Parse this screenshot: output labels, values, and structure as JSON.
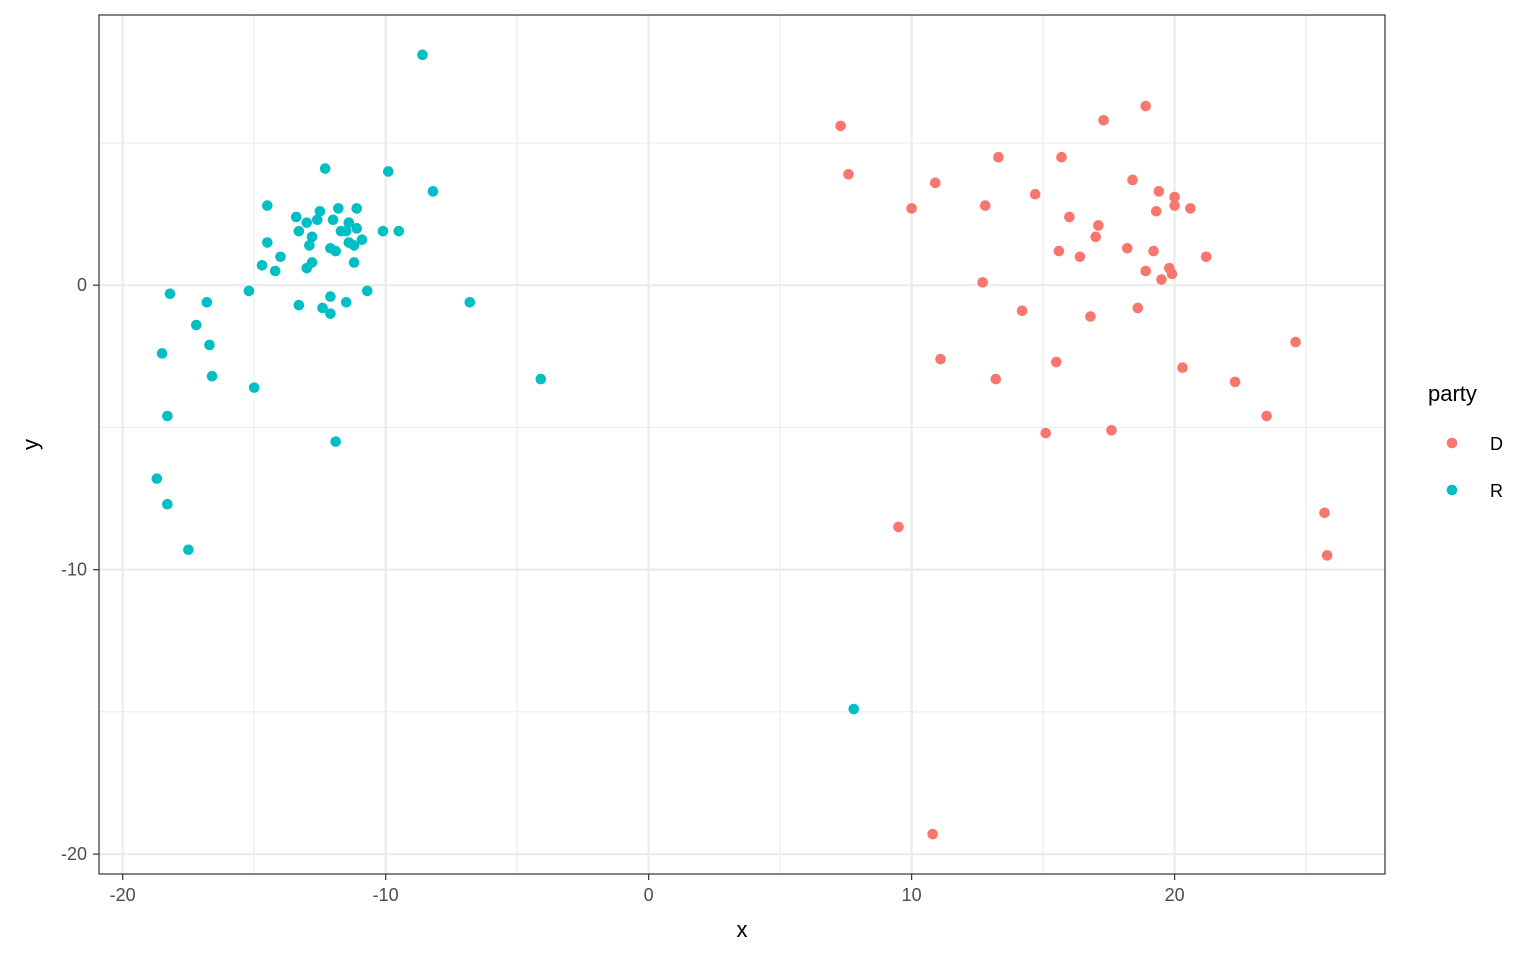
{
  "chart_data": {
    "type": "scatter",
    "xlabel": "x",
    "ylabel": "y",
    "xlim": [
      -20.9,
      28
    ],
    "ylim": [
      -20.7,
      9.5
    ],
    "xticks": [
      -20,
      -10,
      0,
      10,
      20
    ],
    "xtick_labels": [
      "-20",
      "-10",
      "0",
      "10",
      "20"
    ],
    "yticks": [
      0,
      -10,
      -20
    ],
    "ytick_labels": [
      "0",
      "-10",
      "-20"
    ],
    "x_minor_gridlines": [
      -15,
      -5,
      5,
      15,
      25
    ],
    "y_minor_gridlines": [
      5,
      -5,
      -15
    ],
    "grid": true,
    "legend_position": "right",
    "legend": {
      "title": "party",
      "entries": [
        {
          "label": "D",
          "color": "#F8766D"
        },
        {
          "label": "R",
          "color": "#00BFC4"
        }
      ]
    },
    "series": [
      {
        "name": "D",
        "color": "#F8766D",
        "points": [
          [
            7.3,
            5.6
          ],
          [
            7.6,
            3.9
          ],
          [
            9.5,
            -8.5
          ],
          [
            10.0,
            2.7
          ],
          [
            10.9,
            3.6
          ],
          [
            11.1,
            -2.6
          ],
          [
            10.8,
            -19.3
          ],
          [
            12.7,
            0.1
          ],
          [
            12.8,
            2.8
          ],
          [
            13.2,
            -3.3
          ],
          [
            13.3,
            4.5
          ],
          [
            14.2,
            -0.9
          ],
          [
            14.7,
            3.2
          ],
          [
            15.1,
            -5.2
          ],
          [
            15.5,
            -2.7
          ],
          [
            15.6,
            1.2
          ],
          [
            15.7,
            4.5
          ],
          [
            16.0,
            2.4
          ],
          [
            16.4,
            1.0
          ],
          [
            16.8,
            -1.1
          ],
          [
            17.0,
            1.7
          ],
          [
            17.1,
            2.1
          ],
          [
            17.3,
            5.8
          ],
          [
            17.6,
            -5.1
          ],
          [
            18.2,
            1.3
          ],
          [
            18.4,
            3.7
          ],
          [
            18.6,
            -0.8
          ],
          [
            18.9,
            0.5
          ],
          [
            18.9,
            6.3
          ],
          [
            19.2,
            1.2
          ],
          [
            19.3,
            2.6
          ],
          [
            19.4,
            3.3
          ],
          [
            19.5,
            0.2
          ],
          [
            19.8,
            0.6
          ],
          [
            19.9,
            0.4
          ],
          [
            20.0,
            2.8
          ],
          [
            20.0,
            3.1
          ],
          [
            20.3,
            -2.9
          ],
          [
            20.6,
            2.7
          ],
          [
            21.2,
            1.0
          ],
          [
            22.3,
            -3.4
          ],
          [
            23.5,
            -4.6
          ],
          [
            24.6,
            -2.0
          ],
          [
            25.7,
            -8.0
          ],
          [
            25.8,
            -9.5
          ]
        ]
      },
      {
        "name": "R",
        "color": "#00BFC4",
        "points": [
          [
            -8.6,
            8.1
          ],
          [
            -8.2,
            3.3
          ],
          [
            -9.9,
            4.0
          ],
          [
            -9.5,
            1.9
          ],
          [
            -10.1,
            1.9
          ],
          [
            -10.7,
            -0.2
          ],
          [
            -10.9,
            1.6
          ],
          [
            -11.1,
            2.7
          ],
          [
            -11.1,
            2.0
          ],
          [
            -11.2,
            0.8
          ],
          [
            -11.2,
            1.4
          ],
          [
            -11.4,
            2.2
          ],
          [
            -11.4,
            1.5
          ],
          [
            -11.5,
            1.9
          ],
          [
            -11.5,
            -0.6
          ],
          [
            -11.7,
            1.9
          ],
          [
            -11.8,
            2.7
          ],
          [
            -11.9,
            -5.5
          ],
          [
            -11.9,
            1.2
          ],
          [
            -12.0,
            2.3
          ],
          [
            -12.1,
            -0.4
          ],
          [
            -12.1,
            1.3
          ],
          [
            -12.1,
            -1.0
          ],
          [
            -12.3,
            4.1
          ],
          [
            -12.4,
            -0.8
          ],
          [
            -12.5,
            2.6
          ],
          [
            -12.6,
            2.3
          ],
          [
            -12.8,
            0.8
          ],
          [
            -12.8,
            1.7
          ],
          [
            -12.9,
            1.4
          ],
          [
            -13.0,
            0.6
          ],
          [
            -13.0,
            2.2
          ],
          [
            -13.3,
            1.9
          ],
          [
            -13.3,
            -0.7
          ],
          [
            -13.4,
            2.4
          ],
          [
            -14.0,
            1.0
          ],
          [
            -14.2,
            0.5
          ],
          [
            -14.5,
            1.5
          ],
          [
            -14.5,
            2.8
          ],
          [
            -14.7,
            0.7
          ],
          [
            -15.0,
            -3.6
          ],
          [
            -15.2,
            -0.2
          ],
          [
            -16.6,
            -3.2
          ],
          [
            -16.7,
            -2.1
          ],
          [
            -16.8,
            -0.6
          ],
          [
            -17.2,
            -1.4
          ],
          [
            -17.5,
            -9.3
          ],
          [
            -18.2,
            -0.3
          ],
          [
            -18.3,
            -4.6
          ],
          [
            -18.3,
            -7.7
          ],
          [
            -18.5,
            -2.4
          ],
          [
            -18.7,
            -6.8
          ],
          [
            -6.8,
            -0.6
          ],
          [
            -4.1,
            -3.3
          ],
          [
            7.8,
            -14.9
          ]
        ]
      }
    ]
  }
}
